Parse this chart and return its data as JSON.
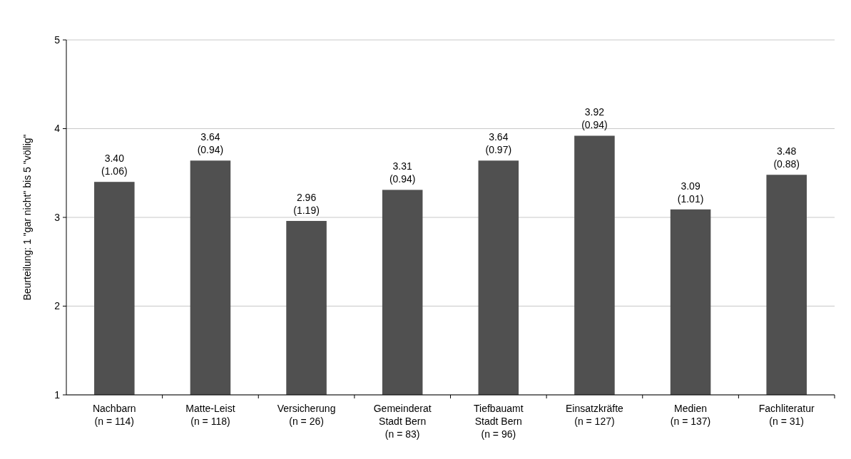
{
  "chart_data": {
    "type": "bar",
    "ylabel": "Beurteilung: 1 \"gar nicht\" bis 5 \"völlig\"",
    "categories": [
      "Nachbarn\n(n = 114)",
      "Matte-Leist\n(n = 118)",
      "Versicherung\n(n = 26)",
      "Gemeinderat\nStadt Bern\n(n = 83)",
      "Tiefbauamt\nStadt Bern\n(n = 96)",
      "Einsatzkräfte\n(n = 127)",
      "Medien\n(n = 137)",
      "Fachliteratur\n(n = 31)"
    ],
    "values": [
      3.4,
      3.64,
      2.96,
      3.31,
      3.64,
      3.92,
      3.09,
      3.48
    ],
    "value_labels": [
      "3.40\n(1.06)",
      "3.64\n(0.94)",
      "2.96\n(1.19)",
      "3.31\n(0.94)",
      "3.64\n(0.97)",
      "3.92\n(0.94)",
      "3.09\n(1.01)",
      "3.48\n(0.88)"
    ],
    "color": "#505050",
    "ylim": [
      1,
      5
    ],
    "yticks": [
      1,
      2,
      3,
      4,
      5
    ],
    "grid": "y"
  }
}
